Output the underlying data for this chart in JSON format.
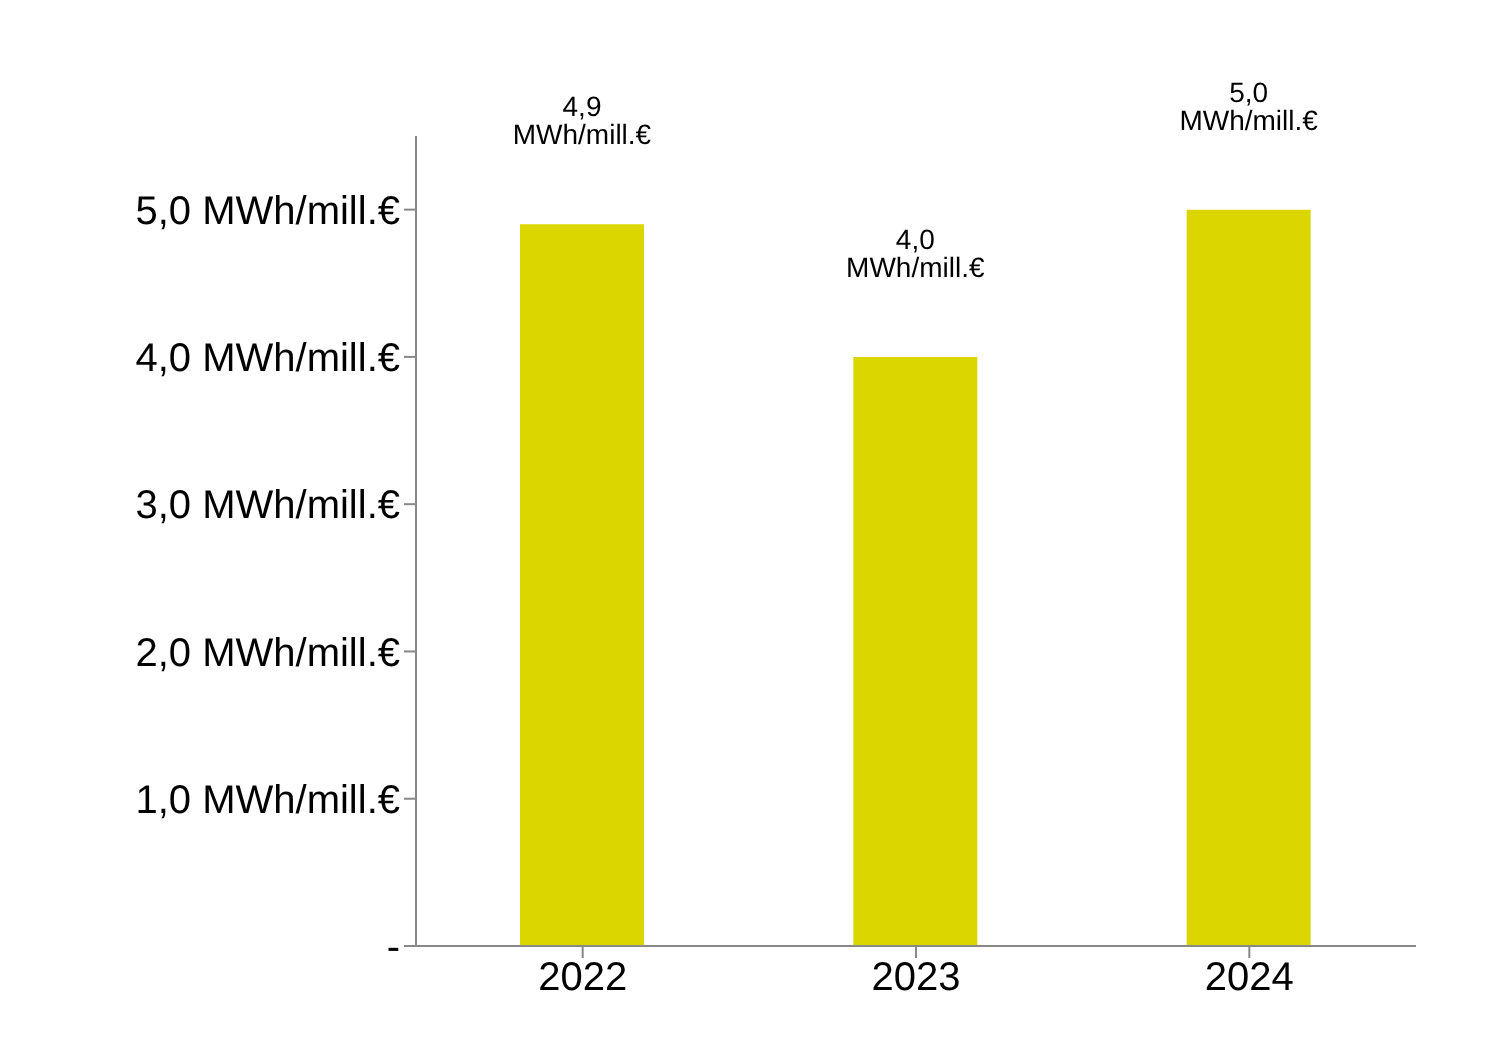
{
  "chart_data": {
    "type": "bar",
    "categories": [
      "2022",
      "2023",
      "2024"
    ],
    "values": [
      4.9,
      4.0,
      5.0
    ],
    "value_labels": [
      "4,9 MWh/mill.€",
      "4,0 MWh/mill.€",
      "5,0 MWh/mill.€"
    ],
    "color": "#dcd600",
    "ylim": [
      0,
      5.5
    ],
    "yticks": [
      {
        "value": 0,
        "label": "-"
      },
      {
        "value": 1,
        "label": "1,0 MWh/mill.€"
      },
      {
        "value": 2,
        "label": "2,0 MWh/mill.€"
      },
      {
        "value": 3,
        "label": "3,0 MWh/mill.€"
      },
      {
        "value": 4,
        "label": "4,0 MWh/mill.€"
      },
      {
        "value": 5,
        "label": "5,0 MWh/mill.€"
      }
    ],
    "grid": false
  }
}
